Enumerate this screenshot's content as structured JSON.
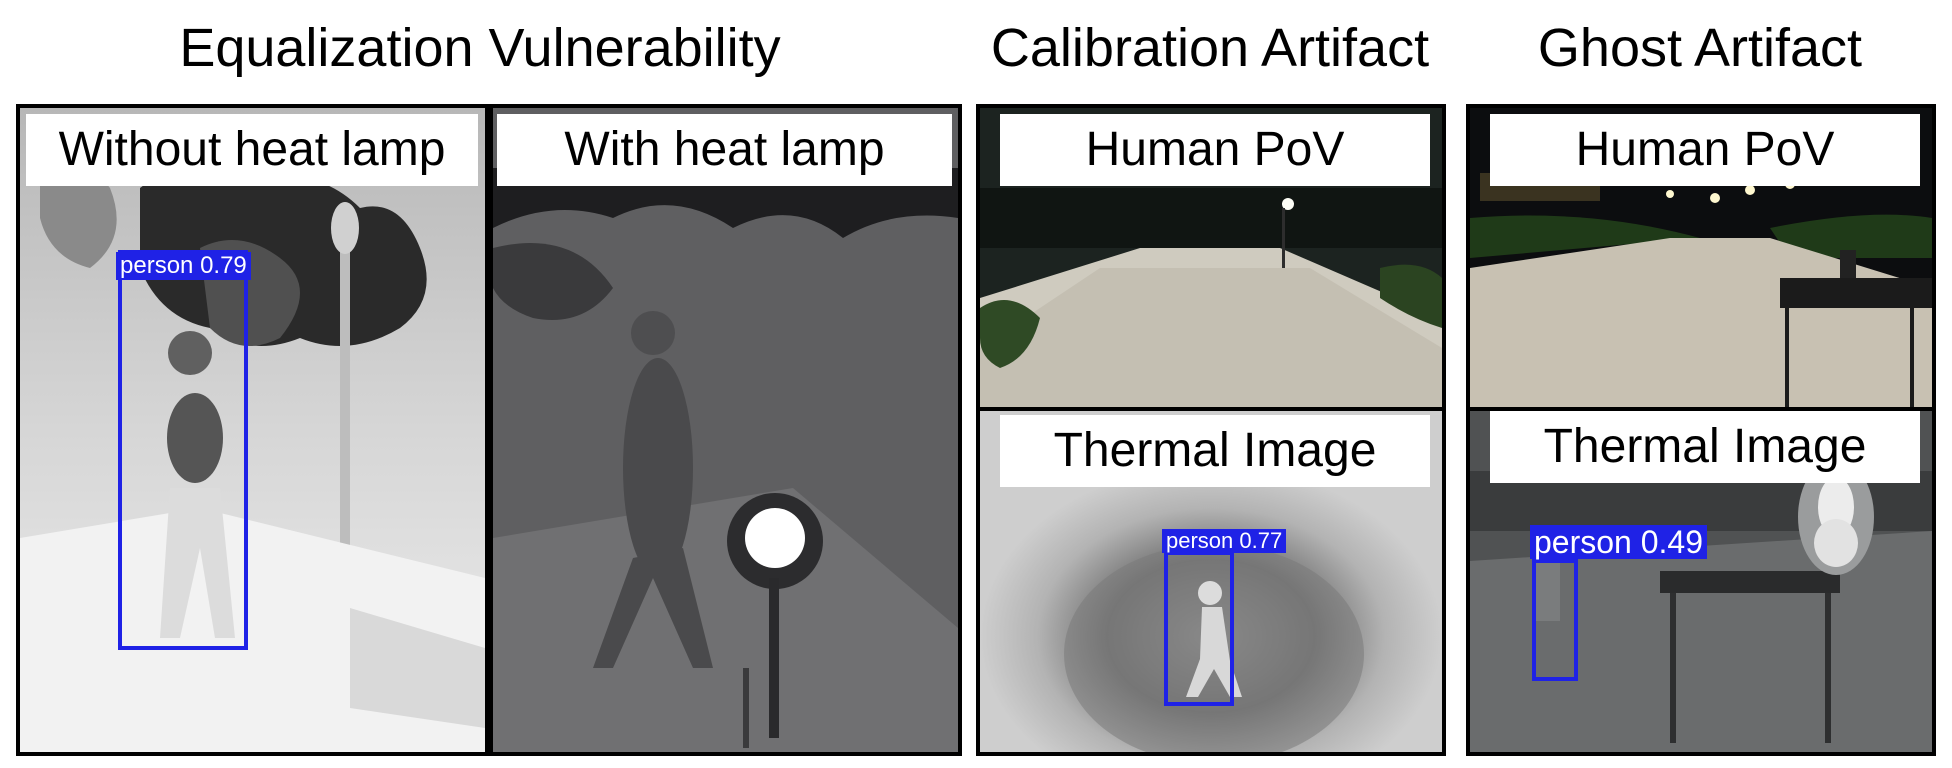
{
  "headings": {
    "equalization": "Equalization Vulnerability",
    "calibration": "Calibration Artifact",
    "ghost": "Ghost Artifact"
  },
  "panels": {
    "without_lamp": {
      "label": "Without heat lamp",
      "detection": {
        "label": "person",
        "score": "0.79"
      }
    },
    "with_lamp": {
      "label": "With heat lamp"
    },
    "calibration_pov": {
      "label": "Human PoV"
    },
    "calibration_thermal": {
      "label": "Thermal Image",
      "detection": {
        "label": "person",
        "score": "0.77"
      }
    },
    "ghost_pov": {
      "label": "Human PoV"
    },
    "ghost_thermal": {
      "label": "Thermal Image",
      "detection": {
        "label": "person",
        "score": "0.49"
      }
    }
  },
  "colors": {
    "detection": "#1f22e6",
    "frame": "#000000"
  }
}
